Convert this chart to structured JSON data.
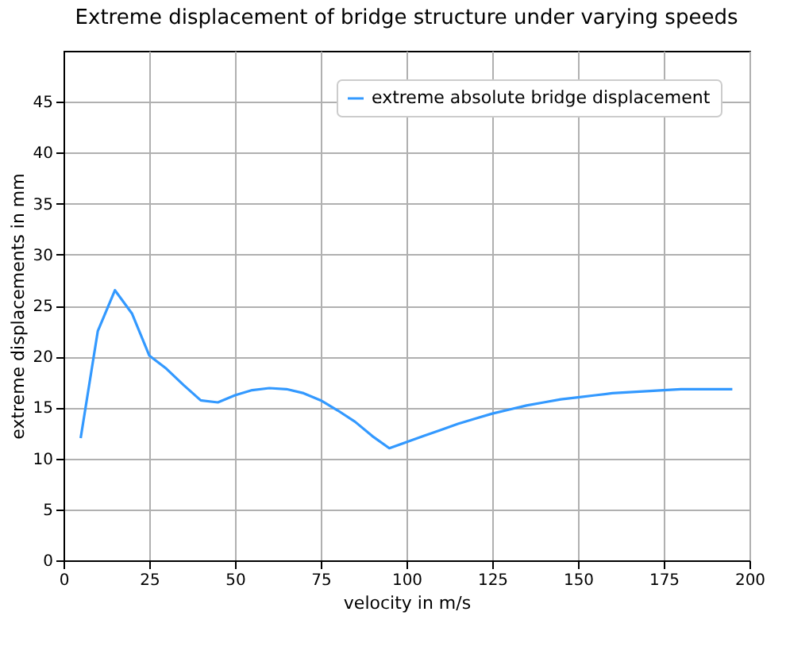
{
  "chart_data": {
    "type": "line",
    "title": "Extreme displacement of bridge structure under varying speeds",
    "xlabel": "velocity in m/s",
    "ylabel": "extreme displacements in mm",
    "x": [
      5,
      10,
      15,
      20,
      25,
      30,
      35,
      40,
      45,
      50,
      55,
      60,
      65,
      70,
      75,
      80,
      85,
      90,
      95,
      100,
      105,
      110,
      115,
      120,
      125,
      130,
      135,
      140,
      145,
      150,
      155,
      160,
      165,
      170,
      175,
      180,
      185,
      190,
      195
    ],
    "series": [
      {
        "name": "extreme absolute bridge displacement",
        "color": "#3399ff",
        "values": [
          12,
          22.5,
          26.5,
          24.2,
          20.1,
          18.8,
          17.2,
          15.7,
          15.5,
          16.2,
          16.7,
          16.9,
          16.8,
          16.4,
          15.7,
          14.7,
          13.6,
          12.2,
          11.0,
          11.6,
          12.2,
          12.8,
          13.4,
          13.9,
          14.4,
          14.8,
          15.2,
          15.5,
          15.8,
          16.0,
          16.2,
          16.4,
          16.5,
          16.6,
          16.7,
          16.8,
          16.8,
          16.8,
          16.8
        ]
      }
    ],
    "xlim": [
      0,
      200
    ],
    "xticks": [
      0,
      25,
      50,
      75,
      100,
      125,
      150,
      175,
      200
    ],
    "ylim": [
      0,
      50
    ],
    "yticks": [
      0,
      5,
      10,
      15,
      20,
      25,
      30,
      35,
      40,
      45
    ],
    "grid": true,
    "legend": "top right",
    "marker": "none",
    "line_style": "solid"
  }
}
